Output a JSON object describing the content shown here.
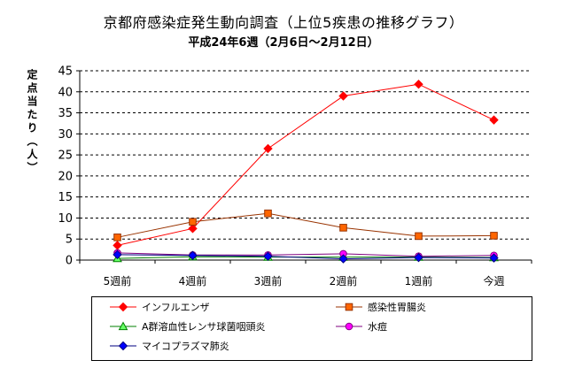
{
  "title": "京都府感染症発生動向調査（上位5疾患の推移グラフ）",
  "subtitle": "平成24年6週（2月6日～2月12日）",
  "chart_data": {
    "type": "line",
    "ylabel": "定点当たり（人）",
    "xlabel": "",
    "ylim": [
      0,
      45
    ],
    "ytick_step": 5,
    "grid": "horizontal dashed",
    "legend": "bottom",
    "categories": [
      "5週前",
      "4週前",
      "3週前",
      "2週前",
      "1週前",
      "今週"
    ],
    "series": [
      {
        "name": "インフルエンザ",
        "color": "#ff0000",
        "marker": "diamond",
        "values": [
          3.5,
          7.5,
          26.5,
          39.0,
          41.8,
          33.3
        ]
      },
      {
        "name": "感染性胃腸炎",
        "color": "#993300",
        "marker": "square",
        "marker_fill": "#ff6600",
        "values": [
          5.4,
          9.1,
          11.1,
          7.7,
          5.7,
          5.8
        ]
      },
      {
        "name": "A群溶血性レンサ球菌咽頭炎",
        "color": "#008000",
        "marker": "triangle",
        "marker_fill": "#66ff66",
        "values": [
          0.4,
          0.8,
          0.7,
          0.7,
          0.7,
          0.6
        ]
      },
      {
        "name": "水痘",
        "color": "#800080",
        "marker": "circle",
        "marker_fill": "#ff00ff",
        "values": [
          1.7,
          1.2,
          1.2,
          1.5,
          0.9,
          1.1
        ]
      },
      {
        "name": "マイコプラズマ肺炎",
        "color": "#000080",
        "marker": "diamond",
        "marker_fill": "#0000ff",
        "values": [
          1.3,
          1.1,
          0.9,
          0.3,
          0.6,
          0.5
        ]
      }
    ]
  }
}
